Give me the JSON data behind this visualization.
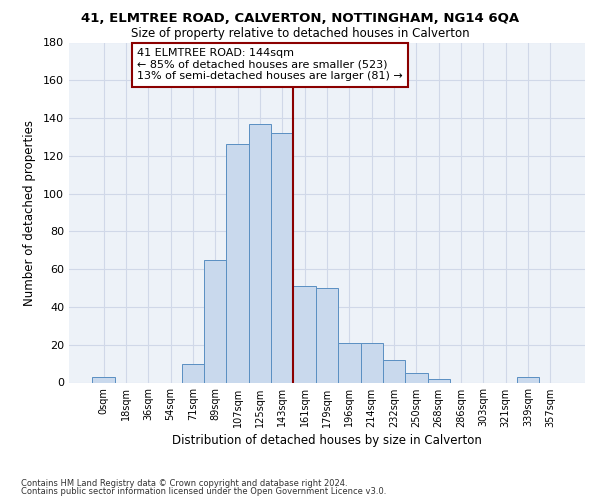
{
  "title1": "41, ELMTREE ROAD, CALVERTON, NOTTINGHAM, NG14 6QA",
  "title2": "Size of property relative to detached houses in Calverton",
  "xlabel": "Distribution of detached houses by size in Calverton",
  "ylabel": "Number of detached properties",
  "footnote1": "Contains HM Land Registry data © Crown copyright and database right 2024.",
  "footnote2": "Contains public sector information licensed under the Open Government Licence v3.0.",
  "bar_labels": [
    "0sqm",
    "18sqm",
    "36sqm",
    "54sqm",
    "71sqm",
    "89sqm",
    "107sqm",
    "125sqm",
    "143sqm",
    "161sqm",
    "179sqm",
    "196sqm",
    "214sqm",
    "232sqm",
    "250sqm",
    "268sqm",
    "286sqm",
    "303sqm",
    "321sqm",
    "339sqm",
    "357sqm"
  ],
  "bar_values": [
    3,
    0,
    0,
    0,
    10,
    65,
    126,
    137,
    132,
    51,
    50,
    21,
    21,
    12,
    5,
    2,
    0,
    0,
    0,
    3,
    0
  ],
  "bar_color": "#c9d9ed",
  "bar_edge_color": "#5a8fc2",
  "vline_x": 8.5,
  "vline_color": "#8b0000",
  "annotation_title": "41 ELMTREE ROAD: 144sqm",
  "annotation_line2": "← 85% of detached houses are smaller (523)",
  "annotation_line3": "13% of semi-detached houses are larger (81) →",
  "annotation_box_color": "#8b0000",
  "annotation_fill": "#ffffff",
  "ylim": [
    0,
    180
  ],
  "yticks": [
    0,
    20,
    40,
    60,
    80,
    100,
    120,
    140,
    160,
    180
  ],
  "grid_color": "#d0d8e8",
  "bg_color": "#edf2f8"
}
